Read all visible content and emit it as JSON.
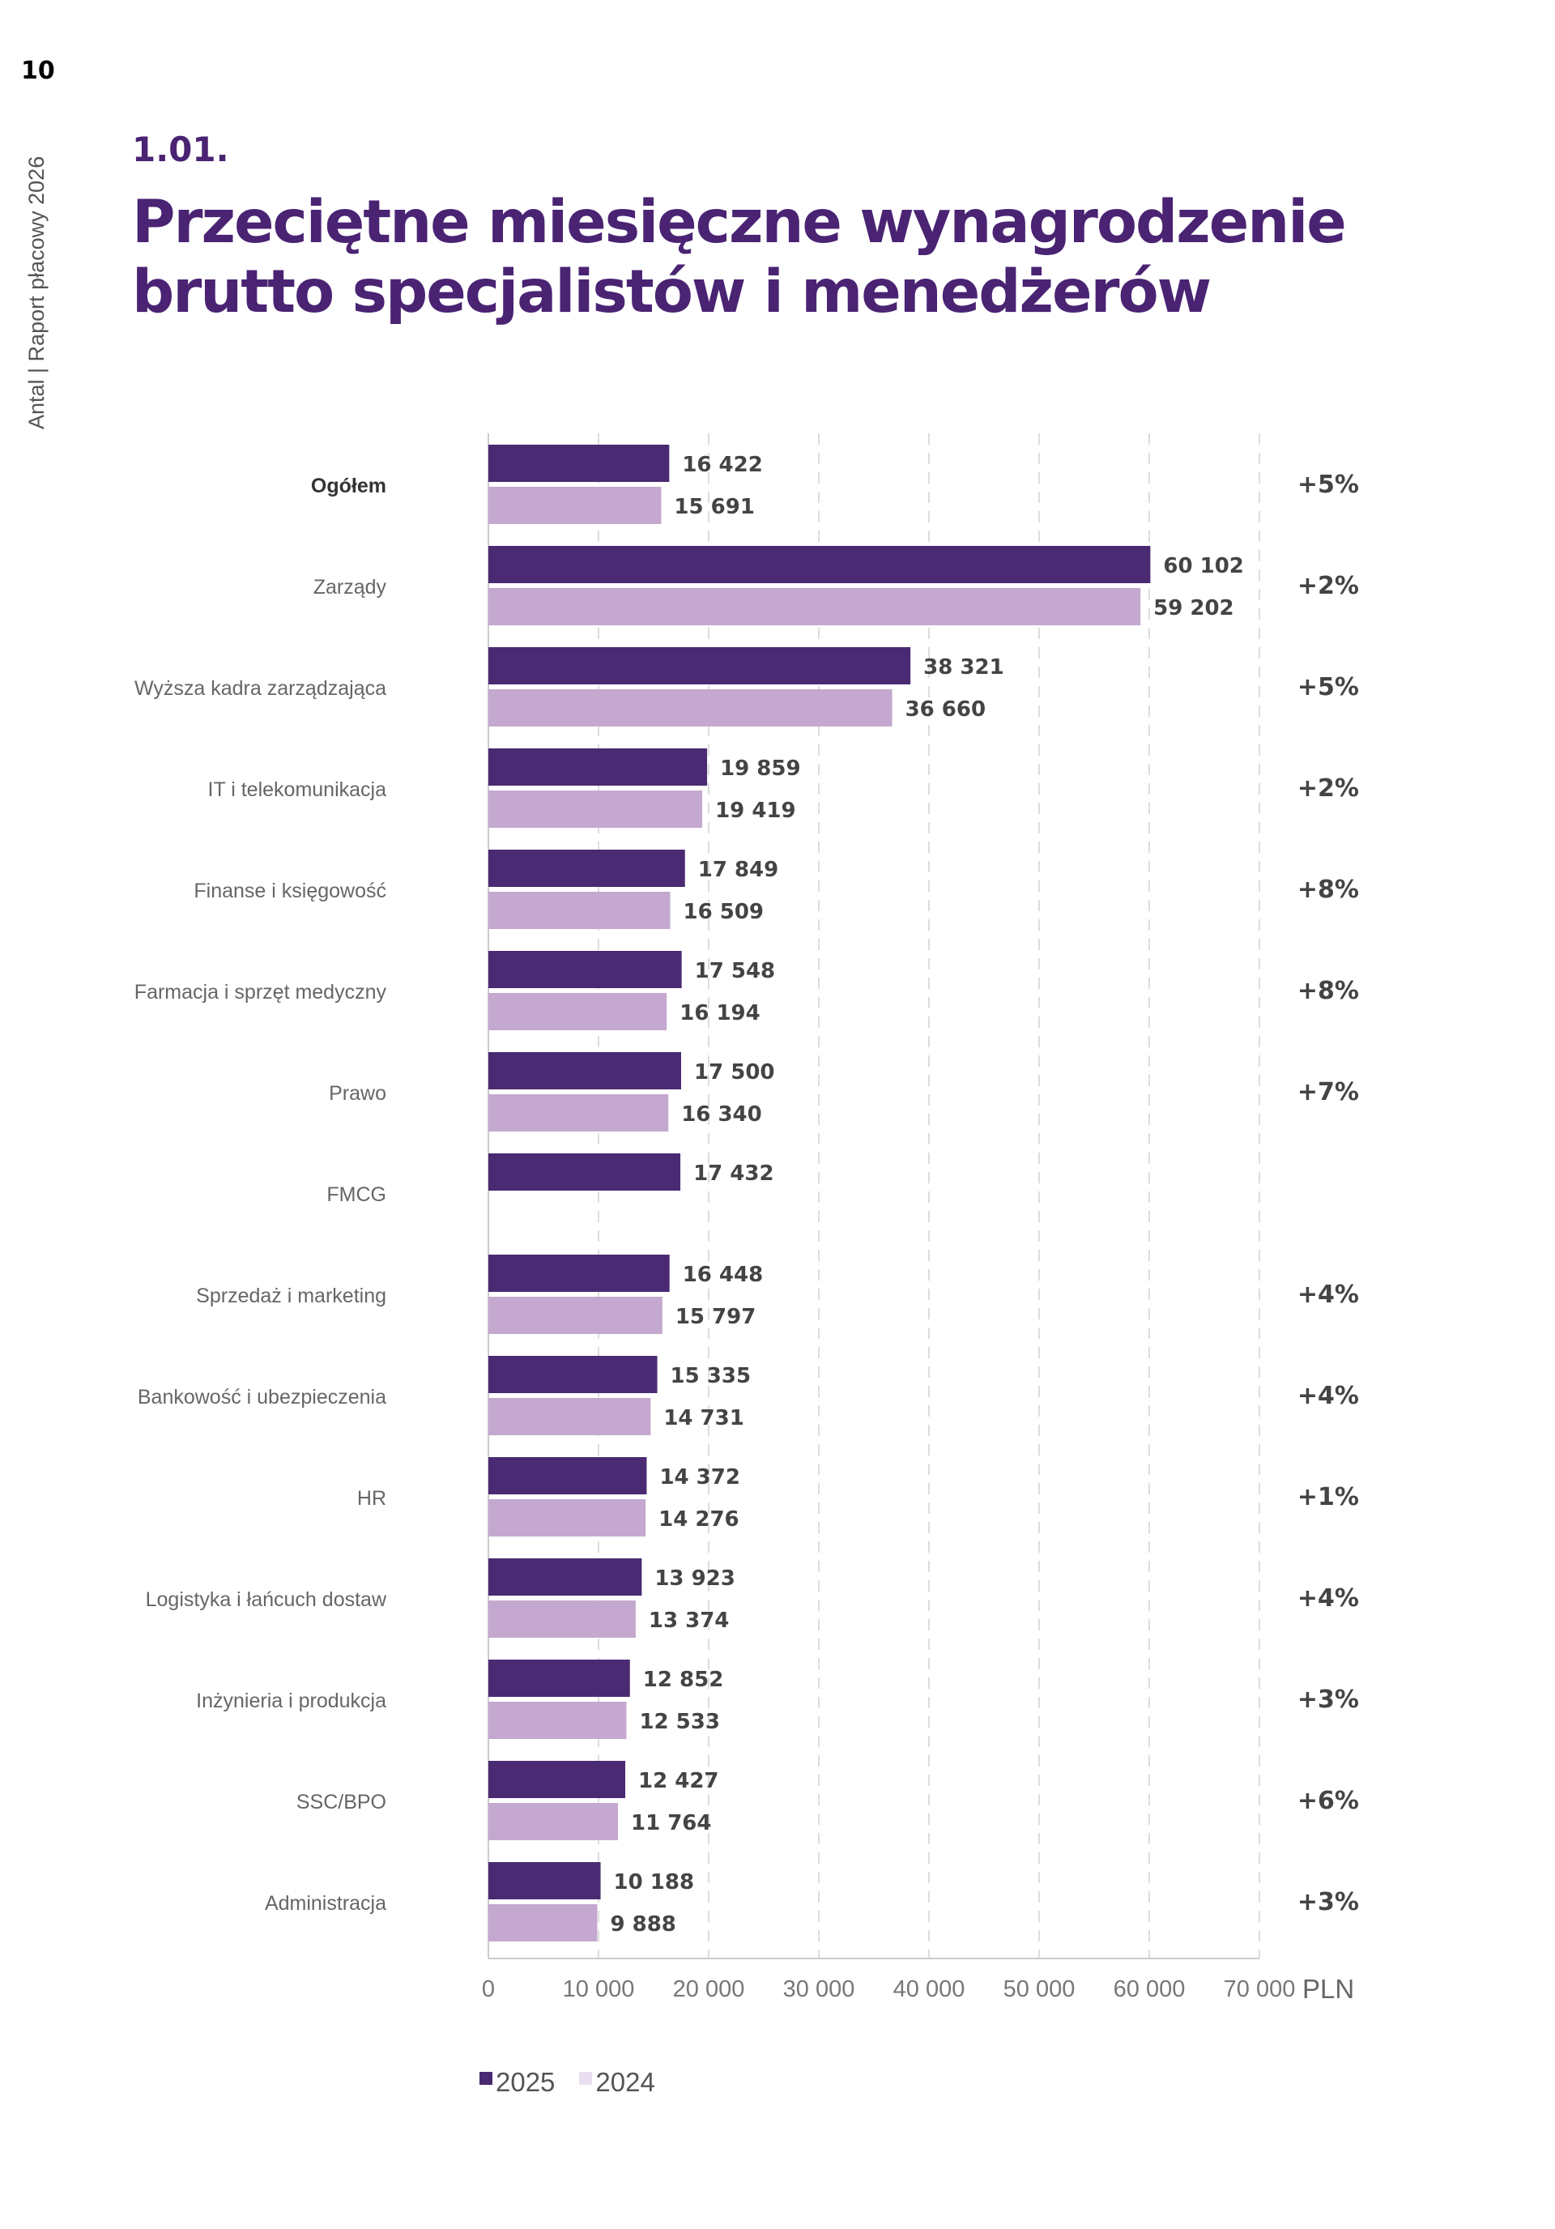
{
  "page": {
    "number": "10",
    "side_text": "Antal | Raport płacowy 2026",
    "section_number": "1.01.",
    "title_lines": [
      "Przeciętne miesięczne wynagrodzenie",
      "brutto specjalistów i menedżerów"
    ]
  },
  "colors": {
    "title": "#4a2373",
    "series_2025": "#4a2a72",
    "series_2024": "#c4a8cf",
    "legend_2024_swatch": "#e8e0f0",
    "gridline": "#dddddd"
  },
  "legend": {
    "items": [
      {
        "label": "2025",
        "color": "#4a2a72"
      },
      {
        "label": "2024",
        "color": "#e8e0f0"
      }
    ]
  },
  "chart_data": {
    "type": "bar",
    "orientation": "horizontal",
    "title": "",
    "xlabel": "",
    "ylabel": "",
    "unit_label": "PLN",
    "xlim": [
      0,
      70000
    ],
    "x_ticks": [
      0,
      10000,
      20000,
      30000,
      40000,
      50000,
      60000,
      70000
    ],
    "x_tick_labels": [
      "0",
      "10 000",
      "20 000",
      "30 000",
      "40 000",
      "50 000",
      "60 000",
      "70 000"
    ],
    "grid": "vertical dashed",
    "legend_position": "bottom-left",
    "categories": [
      "Ogółem",
      "Zarządy",
      "Wyższa kadra zarządzająca",
      "IT i telekomunikacja",
      "Finanse i księgowość",
      "Farmacja i sprzęt medyczny",
      "Prawo",
      "FMCG",
      "Sprzedaż i marketing",
      "Bankowość i ubezpieczenia",
      "HR",
      "Logistyka i łańcuch dostaw",
      "Inżynieria i produkcja",
      "SSC/BPO",
      "Administracja"
    ],
    "bold_category": "Ogółem",
    "series": [
      {
        "name": "2025",
        "values": [
          16422,
          60102,
          38321,
          19859,
          17849,
          17548,
          17500,
          17432,
          16448,
          15335,
          14372,
          13923,
          12852,
          12427,
          10188
        ],
        "labels": [
          "16 422",
          "60 102",
          "38 321",
          "19 859",
          "17 849",
          "17 548",
          "17 500",
          "17 432",
          "16 448",
          "15 335",
          "14 372",
          "13 923",
          "12 852",
          "12 427",
          "10 188"
        ]
      },
      {
        "name": "2024",
        "values": [
          15691,
          59202,
          36660,
          19419,
          16509,
          16194,
          16340,
          null,
          15797,
          14731,
          14276,
          13374,
          12533,
          11764,
          9888
        ],
        "labels": [
          "15 691",
          "59 202",
          "36 660",
          "19 419",
          "16 509",
          "16 194",
          "16 340",
          null,
          "15 797",
          "14 731",
          "14 276",
          "13 374",
          "12 533",
          "11 764",
          "9 888"
        ]
      }
    ],
    "change_labels": [
      "+5%",
      "+2%",
      "+5%",
      "+2%",
      "+8%",
      "+8%",
      "+7%",
      null,
      "+4%",
      "+4%",
      "+1%",
      "+4%",
      "+3%",
      "+6%",
      "+3%"
    ]
  }
}
